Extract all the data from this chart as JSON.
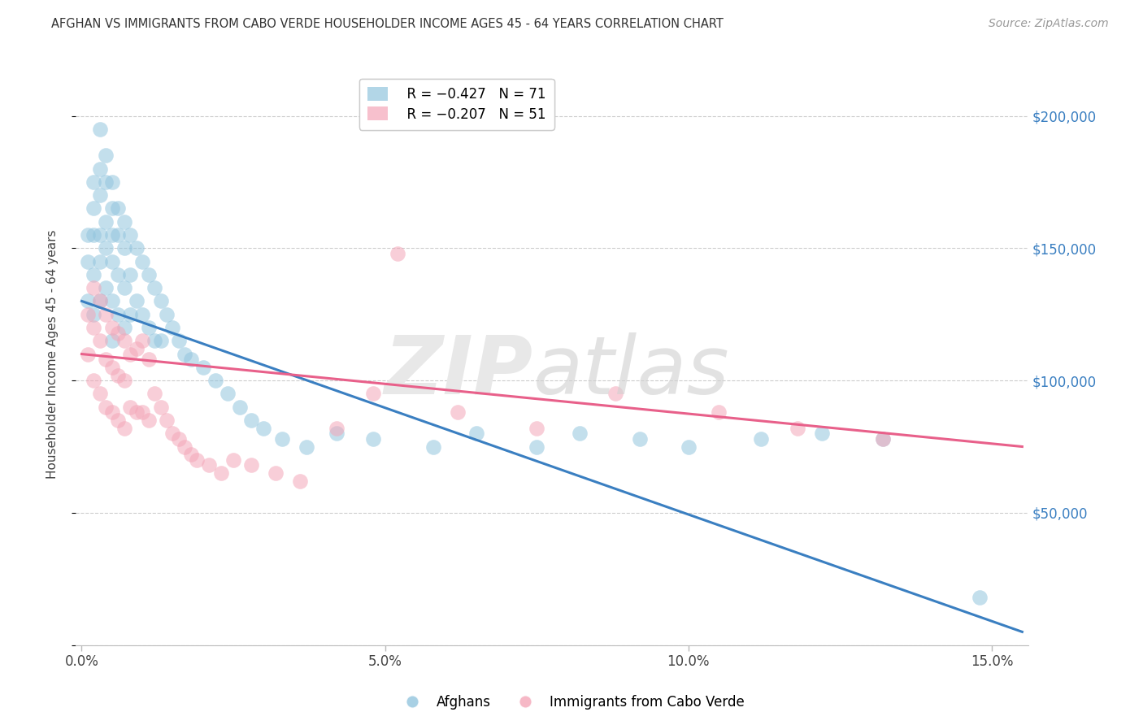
{
  "title": "AFGHAN VS IMMIGRANTS FROM CABO VERDE HOUSEHOLDER INCOME AGES 45 - 64 YEARS CORRELATION CHART",
  "source": "Source: ZipAtlas.com",
  "ylabel": "Householder Income Ages 45 - 64 years",
  "xlabel_ticks": [
    "0.0%",
    "5.0%",
    "10.0%",
    "15.0%"
  ],
  "xlabel_vals": [
    0.0,
    0.05,
    0.1,
    0.15
  ],
  "ylim": [
    0,
    220000
  ],
  "xlim": [
    -0.001,
    0.156
  ],
  "yticks": [
    0,
    50000,
    100000,
    150000,
    200000
  ],
  "ytick_labels": [
    "",
    "$50,000",
    "$100,000",
    "$150,000",
    "$200,000"
  ],
  "blue_color": "#92c5de",
  "pink_color": "#f4a6b8",
  "blue_line_color": "#3a7fc1",
  "pink_line_color": "#e8608a",
  "legend_blue_R": "R = −0.427",
  "legend_blue_N": "N = 71",
  "legend_pink_R": "R = −0.207",
  "legend_pink_N": "N = 51",
  "blue_line_x0": 0.0,
  "blue_line_y0": 130000,
  "blue_line_x1": 0.155,
  "blue_line_y1": 5000,
  "pink_line_x0": 0.0,
  "pink_line_y0": 110000,
  "pink_line_x1": 0.155,
  "pink_line_y1": 75000,
  "blue_scatter_x": [
    0.001,
    0.001,
    0.001,
    0.002,
    0.002,
    0.002,
    0.002,
    0.002,
    0.003,
    0.003,
    0.003,
    0.003,
    0.003,
    0.003,
    0.004,
    0.004,
    0.004,
    0.004,
    0.004,
    0.005,
    0.005,
    0.005,
    0.005,
    0.005,
    0.005,
    0.006,
    0.006,
    0.006,
    0.006,
    0.007,
    0.007,
    0.007,
    0.007,
    0.008,
    0.008,
    0.008,
    0.009,
    0.009,
    0.01,
    0.01,
    0.011,
    0.011,
    0.012,
    0.012,
    0.013,
    0.013,
    0.014,
    0.015,
    0.016,
    0.017,
    0.018,
    0.02,
    0.022,
    0.024,
    0.026,
    0.028,
    0.03,
    0.033,
    0.037,
    0.042,
    0.048,
    0.058,
    0.065,
    0.075,
    0.082,
    0.092,
    0.1,
    0.112,
    0.122,
    0.132,
    0.148
  ],
  "blue_scatter_y": [
    155000,
    145000,
    130000,
    175000,
    165000,
    155000,
    140000,
    125000,
    195000,
    180000,
    170000,
    155000,
    145000,
    130000,
    185000,
    175000,
    160000,
    150000,
    135000,
    175000,
    165000,
    155000,
    145000,
    130000,
    115000,
    165000,
    155000,
    140000,
    125000,
    160000,
    150000,
    135000,
    120000,
    155000,
    140000,
    125000,
    150000,
    130000,
    145000,
    125000,
    140000,
    120000,
    135000,
    115000,
    130000,
    115000,
    125000,
    120000,
    115000,
    110000,
    108000,
    105000,
    100000,
    95000,
    90000,
    85000,
    82000,
    78000,
    75000,
    80000,
    78000,
    75000,
    80000,
    75000,
    80000,
    78000,
    75000,
    78000,
    80000,
    78000,
    18000
  ],
  "pink_scatter_x": [
    0.001,
    0.001,
    0.002,
    0.002,
    0.002,
    0.003,
    0.003,
    0.003,
    0.004,
    0.004,
    0.004,
    0.005,
    0.005,
    0.005,
    0.006,
    0.006,
    0.006,
    0.007,
    0.007,
    0.007,
    0.008,
    0.008,
    0.009,
    0.009,
    0.01,
    0.01,
    0.011,
    0.011,
    0.012,
    0.013,
    0.014,
    0.015,
    0.016,
    0.017,
    0.018,
    0.019,
    0.021,
    0.023,
    0.025,
    0.028,
    0.032,
    0.036,
    0.042,
    0.048,
    0.052,
    0.062,
    0.075,
    0.088,
    0.105,
    0.118,
    0.132
  ],
  "pink_scatter_y": [
    125000,
    110000,
    135000,
    120000,
    100000,
    130000,
    115000,
    95000,
    125000,
    108000,
    90000,
    120000,
    105000,
    88000,
    118000,
    102000,
    85000,
    115000,
    100000,
    82000,
    110000,
    90000,
    112000,
    88000,
    115000,
    88000,
    108000,
    85000,
    95000,
    90000,
    85000,
    80000,
    78000,
    75000,
    72000,
    70000,
    68000,
    65000,
    70000,
    68000,
    65000,
    62000,
    82000,
    95000,
    148000,
    88000,
    82000,
    95000,
    88000,
    82000,
    78000
  ]
}
